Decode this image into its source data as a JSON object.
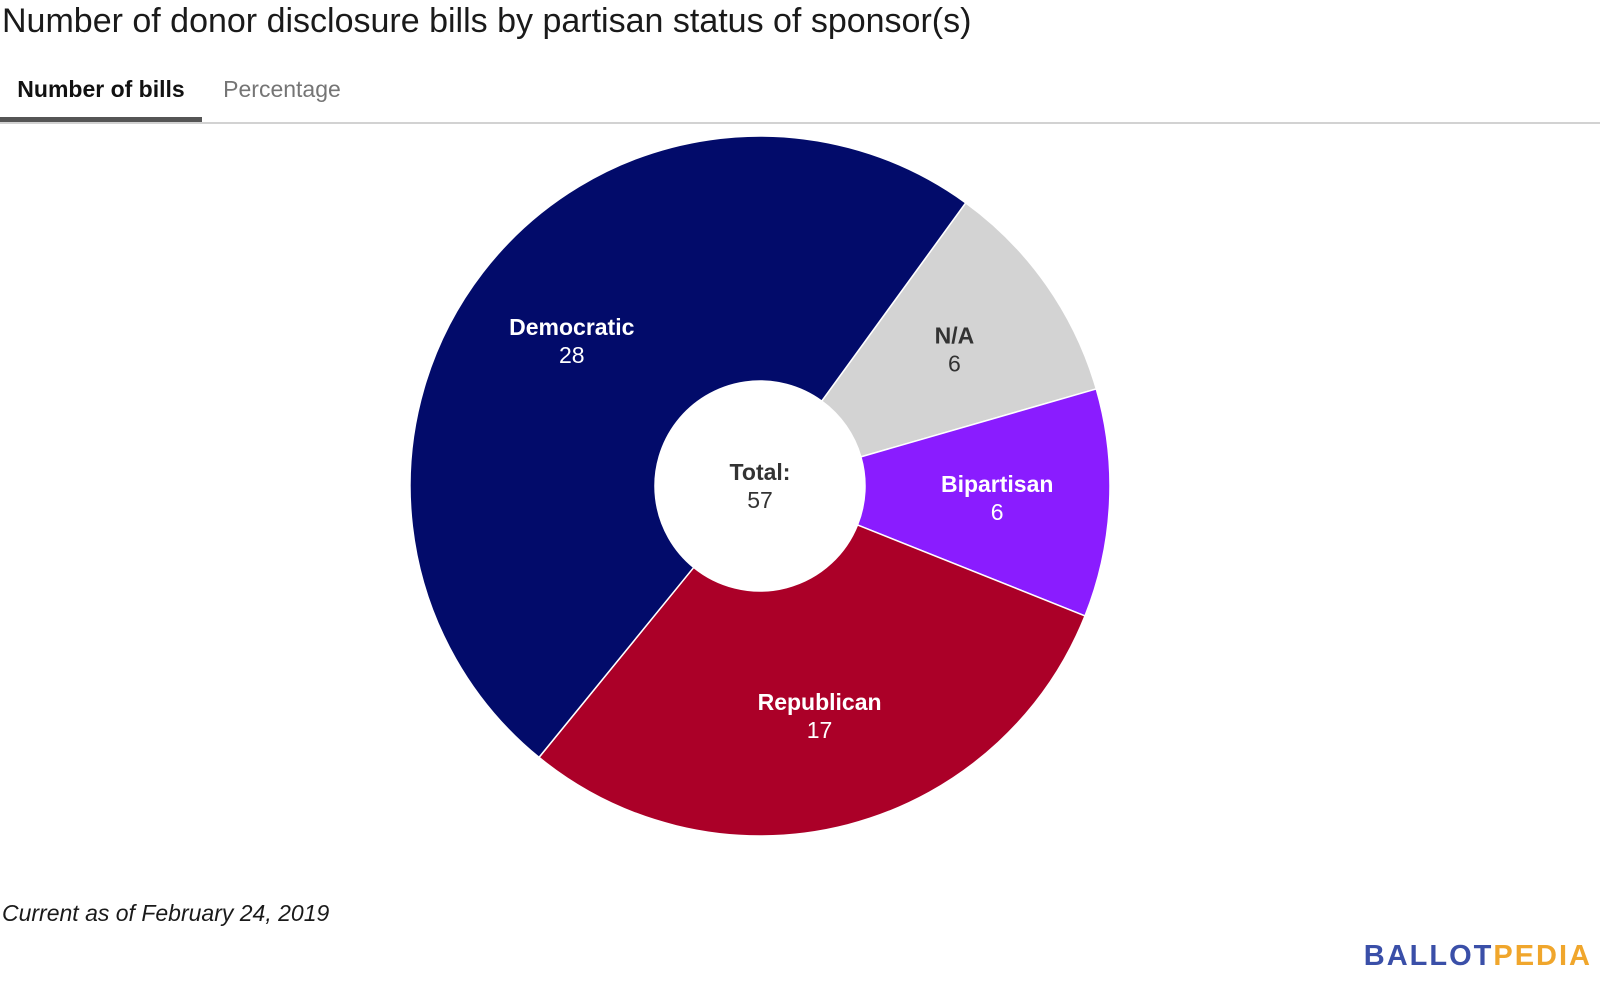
{
  "title": "Number of donor disclosure bills by partisan status of sponsor(s)",
  "tabs": [
    {
      "label": "Number of bills",
      "active": true
    },
    {
      "label": "Percentage",
      "active": false
    }
  ],
  "footnote": "Current as of February 24, 2019",
  "logo": {
    "part1": "BALLOT",
    "part2": "PEDIA",
    "color1": "#3a4fa8",
    "color2": "#f0a62c"
  },
  "chart_data": {
    "type": "pie",
    "donut": true,
    "center_label": "Total:",
    "center_value": "57",
    "slices": [
      {
        "label": "N/A",
        "value": 6,
        "color": "#d3d3d3",
        "text_color": "#333333"
      },
      {
        "label": "Bipartisan",
        "value": 6,
        "color": "#8a1cff",
        "text_color": "#ffffff"
      },
      {
        "label": "Republican",
        "value": 17,
        "color": "#ab0028",
        "text_color": "#ffffff"
      },
      {
        "label": "Democratic",
        "value": 28,
        "color": "#020b6a",
        "text_color": "#ffffff"
      }
    ],
    "total": 57,
    "legend": "none"
  }
}
